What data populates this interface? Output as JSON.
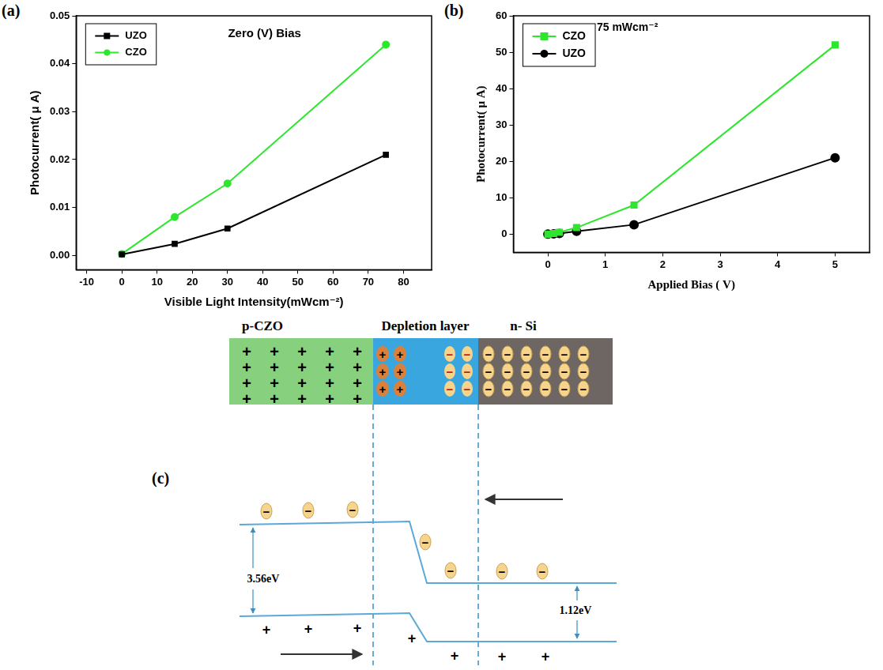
{
  "chart_data": [
    {
      "type": "line",
      "panel_label": "(a)",
      "annotations": [
        "Zero (V) Bias"
      ],
      "x_label": "Visible Light Intensity(mWcm⁻²)",
      "y_label": "Photocurrent( μ A)",
      "x": [
        0,
        15,
        30,
        75
      ],
      "series": [
        {
          "name": "UZO",
          "color": "#000000",
          "marker": "square",
          "values": [
            0.0002,
            0.0024,
            0.0056,
            0.021
          ]
        },
        {
          "name": "CZO",
          "color": "#2ee62e",
          "marker": "circle",
          "values": [
            0.0003,
            0.008,
            0.015,
            0.044
          ]
        }
      ],
      "xlim": [
        -13,
        88
      ],
      "xticks": [
        -10,
        0,
        10,
        20,
        30,
        40,
        50,
        60,
        70,
        80
      ],
      "ylim": [
        -0.003,
        0.05
      ],
      "yticks": [
        {
          "value": 0,
          "label": "0.00"
        },
        {
          "value": 0.01,
          "label": "0.01"
        },
        {
          "value": 0.02,
          "label": "0.02"
        },
        {
          "value": 0.03,
          "label": "0.03"
        },
        {
          "value": 0.04,
          "label": "0.04"
        },
        {
          "value": 0.05,
          "label": "0.05"
        }
      ],
      "legend": "upper left",
      "grid": false
    },
    {
      "type": "line",
      "panel_label": "(b)",
      "annotations": [
        "75 mWcm⁻²"
      ],
      "x_label": "Applied Bias ( V)",
      "y_label": "Photocurrent( μ A)",
      "x": [
        0,
        0.1,
        0.2,
        0.5,
        1.5,
        5
      ],
      "series": [
        {
          "name": "CZO",
          "color": "#2ee62e",
          "marker": "square",
          "values": [
            0,
            0.2,
            0.5,
            1.8,
            8,
            52
          ]
        },
        {
          "name": "UZO",
          "color": "#000000",
          "marker": "circle",
          "values": [
            0,
            0.1,
            0.2,
            0.8,
            2.6,
            21
          ]
        }
      ],
      "xlim": [
        -0.6,
        5.6
      ],
      "xticks": [
        0,
        1,
        2,
        3,
        4,
        5
      ],
      "ylim": [
        -5,
        60
      ],
      "yticks": [
        0,
        10,
        20,
        30,
        40,
        50,
        60
      ],
      "legend": "upper left",
      "grid": false
    }
  ],
  "diagram": {
    "panel_label": "(c)",
    "regions": [
      "p-CZO",
      "Depletion layer",
      "n- Si"
    ],
    "charges": {
      "positive": "+",
      "negative": "−"
    },
    "band_gaps": [
      "3.56eV",
      "1.12eV"
    ]
  }
}
